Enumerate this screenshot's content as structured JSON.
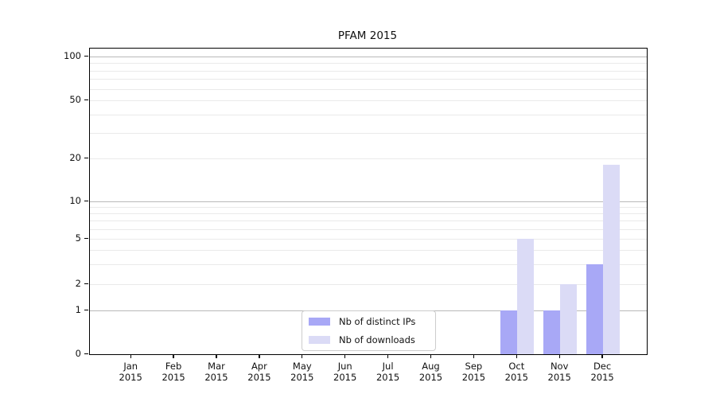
{
  "chart_data": {
    "type": "bar",
    "title": "PFAM 2015",
    "categories": [
      "Jan 2015",
      "Feb 2015",
      "Mar 2015",
      "Apr 2015",
      "May 2015",
      "Jun 2015",
      "Jul 2015",
      "Aug 2015",
      "Sep 2015",
      "Oct 2015",
      "Nov 2015",
      "Dec 2015"
    ],
    "series": [
      {
        "name": "Nb of distinct IPs",
        "color": "#a8a8f6",
        "values": [
          0,
          0,
          0,
          0,
          0,
          0,
          0,
          0,
          0,
          1,
          1,
          3
        ]
      },
      {
        "name": "Nb of downloads",
        "color": "#dbdbf6",
        "values": [
          0,
          0,
          0,
          0,
          0,
          0,
          0,
          0,
          0,
          5,
          2,
          18
        ]
      }
    ],
    "y_axis": {
      "scale": "log",
      "ticks": [
        0,
        1,
        2,
        5,
        10,
        20,
        50,
        100
      ],
      "minor_gridlines": [
        3,
        4,
        6,
        7,
        8,
        9,
        30,
        40,
        60,
        70,
        80,
        90
      ]
    },
    "legend": {
      "position": "lower center inside plot"
    },
    "colors": {
      "grid_decade": "#b9b9b9",
      "grid_minor": "#eaeaea",
      "spine": "#000000",
      "text": "#111111",
      "background": "#ffffff"
    }
  }
}
